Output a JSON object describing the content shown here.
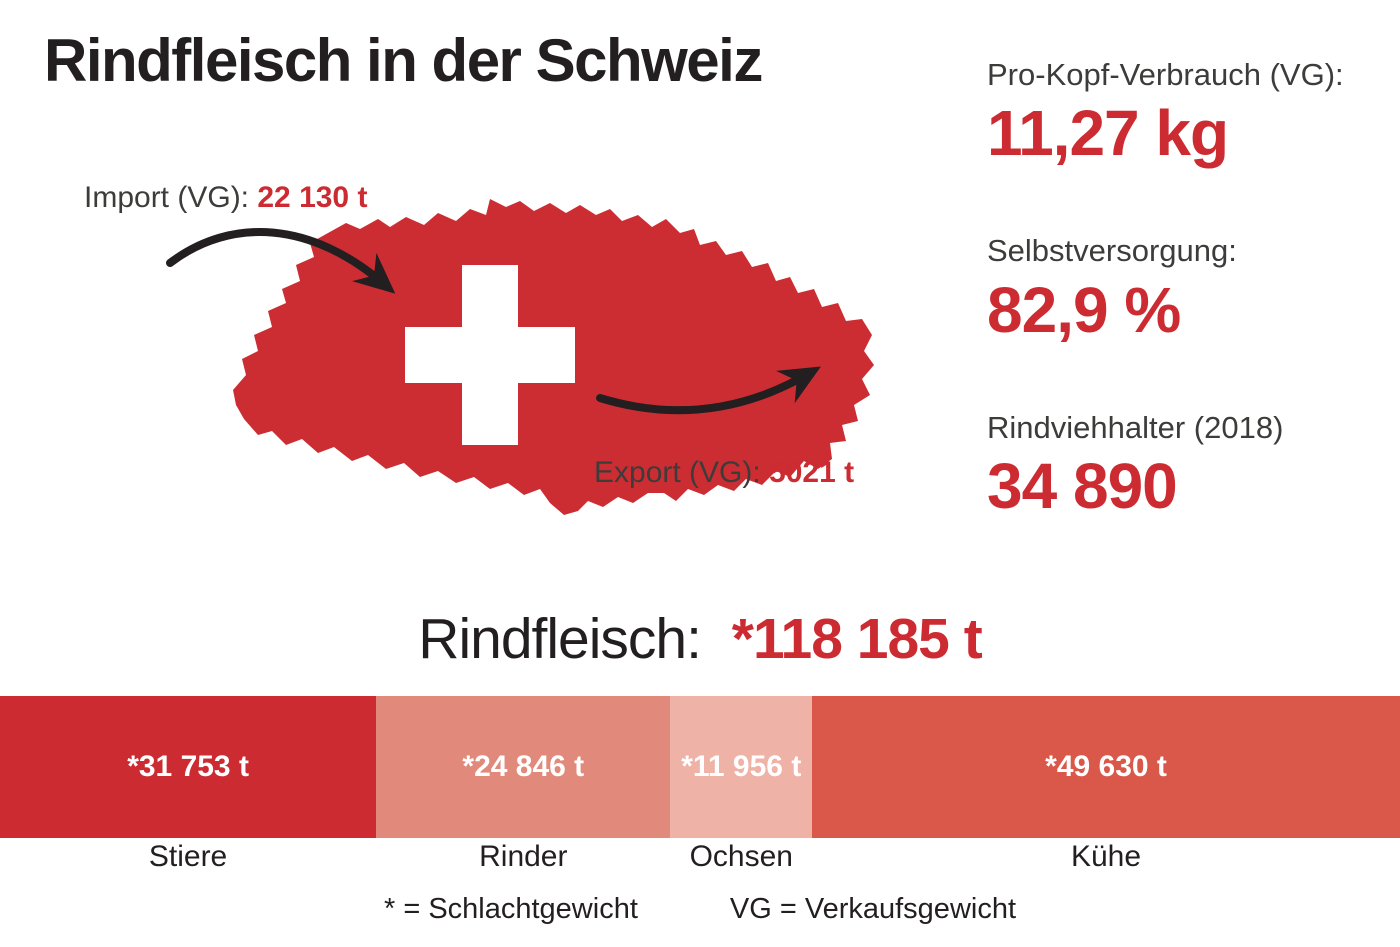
{
  "colors": {
    "accent_red": "#cc2b32",
    "text_dark": "#231f20",
    "text_gray": "#3c3c3b",
    "map_red": "#cc2d33",
    "arrow_black": "#231f20"
  },
  "header": {
    "title": "Rindfleisch in der Schweiz"
  },
  "map": {
    "country": "Schweiz",
    "import_label": "Import (VG):",
    "import_value": "22 130 t",
    "export_label": "Export (VG):",
    "export_value": "5021 t"
  },
  "stats": [
    {
      "label": "Pro-Kopf-Verbrauch (VG):",
      "value": "11,27 kg"
    },
    {
      "label": "Selbstversorgung:",
      "value": "82,9 %"
    },
    {
      "label": "Rindviehhalter (2018)",
      "value": "34 890"
    }
  ],
  "chart_heading": {
    "label": "Rindfleisch:",
    "value": "*118 185 t"
  },
  "chart_data": {
    "type": "bar",
    "variant": "horizontal-stacked",
    "title": "Rindfleisch: *118 185 t",
    "total": 118185,
    "unit": "t",
    "categories": [
      "Stiere",
      "Rinder",
      "Ochsen",
      "Kühe"
    ],
    "values": [
      31753,
      24846,
      11956,
      49630
    ],
    "value_labels": [
      "*31 753 t",
      "*24 846 t",
      "*11 956 t",
      "*49 630 t"
    ],
    "colors": [
      "#cc2b32",
      "#e18a7b",
      "#efb2a6",
      "#d9584a"
    ],
    "legend_position": "below",
    "grid": false
  },
  "footnotes": [
    "* = Schlachtgewicht",
    "VG = Verkaufsgewicht"
  ]
}
